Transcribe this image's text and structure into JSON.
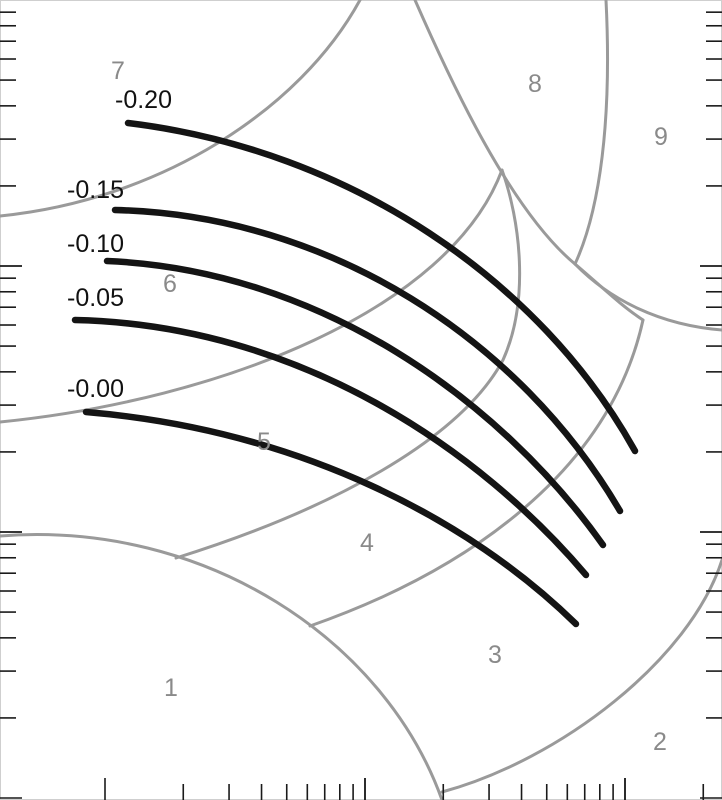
{
  "region_labels": [
    "1",
    "2",
    "3",
    "4",
    "5",
    "6",
    "7",
    "8",
    "9"
  ],
  "curve_labels": [
    "-0.20",
    "-0.15",
    "-0.10",
    "-0.05",
    "-0.00"
  ],
  "colors": {
    "curves": "#141414",
    "region_boundaries": "#9a9a9a",
    "region_labels": "#8a8a8a",
    "ticks": "#1a1a1a",
    "background": "#ffffff"
  }
}
